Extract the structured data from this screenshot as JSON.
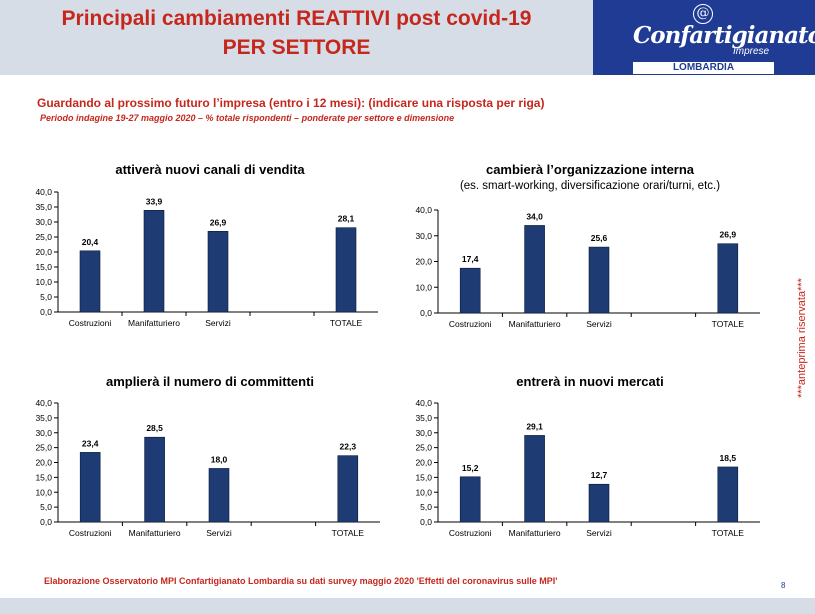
{
  "header": {
    "title_line1": "Principali cambiamenti REATTIVI post covid-19",
    "title_line2": "PER SETTORE",
    "logo_mark": "@",
    "logo_name": "Confartigianato",
    "logo_sub": "Imprese",
    "logo_region": "LOMBARDIA"
  },
  "question": "Guardando al prossimo futuro l’impresa (entro i 12 mesi): (indicare una risposta per riga)",
  "period": "Periodo indagine 19-27 maggio 2020 – % totale rispondenti – ponderate per settore e dimensione",
  "side_note": "***anteprima riservata***",
  "footer": "Elaborazione Osservatorio MPI Confartigianato Lombardia su dati survey maggio 2020  'Effetti del coronavirus sulle MPI'",
  "page_number": "8",
  "colors": {
    "bar": "#1f3b73",
    "accent": "#c5271c",
    "header_bg": "#d7dde7",
    "logo_bg": "#1f3b94"
  },
  "chart_data": [
    {
      "type": "bar",
      "title": "attiverà nuovi canali di vendita",
      "subtitle": "",
      "categories": [
        "Costruzioni",
        "Manifatturiero",
        "Servizi",
        "",
        "TOTALE"
      ],
      "values": [
        20.4,
        33.9,
        26.9,
        null,
        28.1
      ],
      "value_labels": [
        "20,4",
        "33,9",
        "26,9",
        "",
        "28,1"
      ],
      "ylim": [
        0,
        40
      ],
      "yticks": [
        "0,0",
        "5,0",
        "10,0",
        "15,0",
        "20,0",
        "25,0",
        "30,0",
        "35,0",
        "40,0"
      ],
      "grid": false
    },
    {
      "type": "bar",
      "title": "cambierà l’organizzazione interna",
      "subtitle": "(es. smart-working, diversificazione orari/turni, etc.)",
      "categories": [
        "Costruzioni",
        "Manifatturiero",
        "Servizi",
        "",
        "TOTALE"
      ],
      "values": [
        17.4,
        34.0,
        25.6,
        null,
        26.9
      ],
      "value_labels": [
        "17,4",
        "34,0",
        "25,6",
        "",
        "26,9"
      ],
      "ylim": [
        0,
        40
      ],
      "yticks": [
        "0,0",
        "10,0",
        "20,0",
        "30,0",
        "40,0"
      ],
      "grid": false
    },
    {
      "type": "bar",
      "title": "amplierà il numero di committenti",
      "subtitle": "",
      "categories": [
        "Costruzioni",
        "Manifatturiero",
        "Servizi",
        "",
        "TOTALE"
      ],
      "values": [
        23.4,
        28.5,
        18.0,
        null,
        22.3
      ],
      "value_labels": [
        "23,4",
        "28,5",
        "18,0",
        "",
        "22,3"
      ],
      "ylim": [
        0,
        40
      ],
      "yticks": [
        "0,0",
        "5,0",
        "10,0",
        "15,0",
        "20,0",
        "25,0",
        "30,0",
        "35,0",
        "40,0"
      ],
      "grid": false
    },
    {
      "type": "bar",
      "title": "entrerà in nuovi mercati",
      "subtitle": "",
      "categories": [
        "Costruzioni",
        "Manifatturiero",
        "Servizi",
        "",
        "TOTALE"
      ],
      "values": [
        15.2,
        29.1,
        12.7,
        null,
        18.5
      ],
      "value_labels": [
        "15,2",
        "29,1",
        "12,7",
        "",
        "18,5"
      ],
      "ylim": [
        0,
        40
      ],
      "yticks": [
        "0,0",
        "5,0",
        "10,0",
        "15,0",
        "20,0",
        "25,0",
        "30,0",
        "35,0",
        "40,0"
      ],
      "grid": false
    }
  ]
}
